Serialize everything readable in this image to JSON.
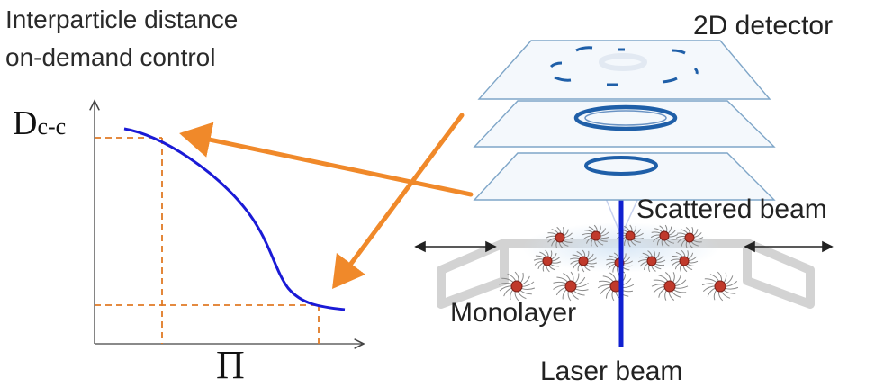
{
  "diagram": {
    "title_line1": "Interparticle distance",
    "title_line2": "on-demand control",
    "y_axis": "D",
    "y_axis_sub": "c-c",
    "x_axis": "Π",
    "detector_label": "2D detector",
    "scattered_label": "Scattered beam",
    "monolayer_label": "Monolayer",
    "laser_label": "Laser beam"
  },
  "colors": {
    "curve": "#1a1ad6",
    "arrow": "#f0892a",
    "dashed": "#e07a25",
    "laser": "#1020d0",
    "plate": "#f3f7fb",
    "plate_edge": "#9bb6cf",
    "ring": "#1f5fa8",
    "trough": "#cfcfcf"
  }
}
